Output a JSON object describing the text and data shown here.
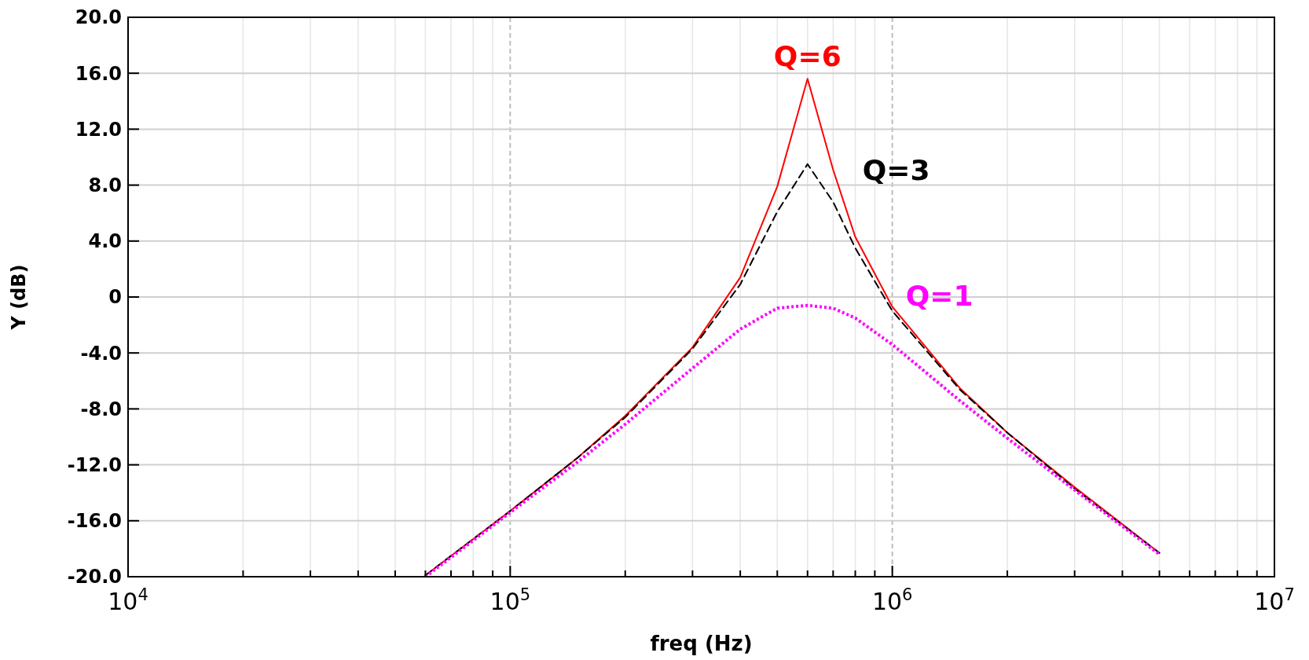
{
  "chart_data": {
    "type": "line",
    "xlabel": "freq (Hz)",
    "ylabel": "Y (dB)",
    "log": "x",
    "grid": true,
    "xlim": [
      10000,
      10000000
    ],
    "xticks": [
      {
        "value": 10000,
        "label": "10$^{4}$"
      },
      {
        "value": 20000,
        "label": null
      },
      {
        "value": 30000,
        "label": null
      },
      {
        "value": 40000,
        "label": null
      },
      {
        "value": 50000,
        "label": null
      },
      {
        "value": 60000,
        "label": null
      },
      {
        "value": 70000,
        "label": null
      },
      {
        "value": 80000,
        "label": null
      },
      {
        "value": 90000,
        "label": null
      },
      {
        "value": 100000,
        "label": "10$^{5}$"
      },
      {
        "value": 200000,
        "label": null
      },
      {
        "value": 300000,
        "label": null
      },
      {
        "value": 400000,
        "label": null
      },
      {
        "value": 500000,
        "label": null
      },
      {
        "value": 600000,
        "label": null
      },
      {
        "value": 700000,
        "label": null
      },
      {
        "value": 800000,
        "label": null
      },
      {
        "value": 900000,
        "label": null
      },
      {
        "value": 1000000,
        "label": "10$^{6}$"
      },
      {
        "value": 2000000,
        "label": null
      },
      {
        "value": 3000000,
        "label": null
      },
      {
        "value": 4000000,
        "label": null
      },
      {
        "value": 5000000,
        "label": null
      },
      {
        "value": 6000000,
        "label": null
      },
      {
        "value": 7000000,
        "label": null
      },
      {
        "value": 8000000,
        "label": null
      },
      {
        "value": 9000000,
        "label": null
      },
      {
        "value": 10000000,
        "label": "10$^{7}$"
      }
    ],
    "ylim": [
      -20,
      20
    ],
    "yticks": [
      {
        "value": -20,
        "label": "-20.0"
      },
      {
        "value": -16,
        "label": "-16.0"
      },
      {
        "value": -12,
        "label": "-12.0"
      },
      {
        "value": -8,
        "label": "-8.0"
      },
      {
        "value": -4,
        "label": "-4.0"
      },
      0,
      {
        "value": 4,
        "label": "4.0"
      },
      {
        "value": 8,
        "label": "8.0"
      },
      {
        "value": 12,
        "label": "12.0"
      },
      {
        "value": 16,
        "label": "16.0"
      },
      {
        "value": 20,
        "label": "20.0"
      }
    ],
    "x": [
      60000,
      100000,
      150000,
      200000,
      300000,
      400000,
      500000,
      600000,
      700000,
      800000,
      1000000,
      1500000,
      2000000,
      3000000,
      5000000
    ],
    "series": [
      {
        "name": "Q=6",
        "color": "#ff0000",
        "line_style": "solid",
        "values": [
          -19.9,
          -15.3,
          -11.5,
          -8.5,
          -3.6,
          1.4,
          7.9,
          15.6,
          9.1,
          4.3,
          -0.7,
          -6.5,
          -9.7,
          -13.6,
          -18.3
        ]
      },
      {
        "name": "Q=3",
        "color": "#000000",
        "line_style": "dashed",
        "values": [
          -19.9,
          -15.3,
          -11.5,
          -8.6,
          -3.7,
          0.9,
          6.1,
          9.5,
          6.8,
          3.5,
          -1.0,
          -6.6,
          -9.7,
          -13.7,
          -18.3
        ]
      },
      {
        "name": "Q=1",
        "color": "#ff00ff",
        "line_style": "dotted",
        "values": [
          -20.0,
          -15.4,
          -11.8,
          -9.1,
          -5.1,
          -2.3,
          -0.8,
          -0.6,
          -0.8,
          -1.5,
          -3.4,
          -7.4,
          -10.1,
          -13.8,
          -18.4
        ]
      }
    ]
  }
}
